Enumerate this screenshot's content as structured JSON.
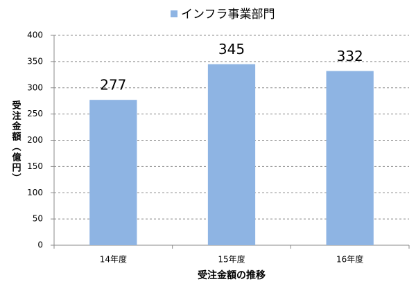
{
  "chart_data": {
    "type": "bar",
    "categories": [
      "14年度",
      "15年度",
      "16年度"
    ],
    "series": [
      {
        "name": "インフラ事業部門",
        "color": "#8eb4e3",
        "values": [
          277,
          345,
          332
        ]
      }
    ],
    "ylim": [
      0,
      400
    ],
    "yticks": [
      0,
      50,
      100,
      150,
      200,
      250,
      300,
      350,
      400
    ],
    "grid": true,
    "y_label": "受注金額（億円）",
    "x_label": "受注金額の推移",
    "data_labels": true,
    "legend": "top"
  }
}
